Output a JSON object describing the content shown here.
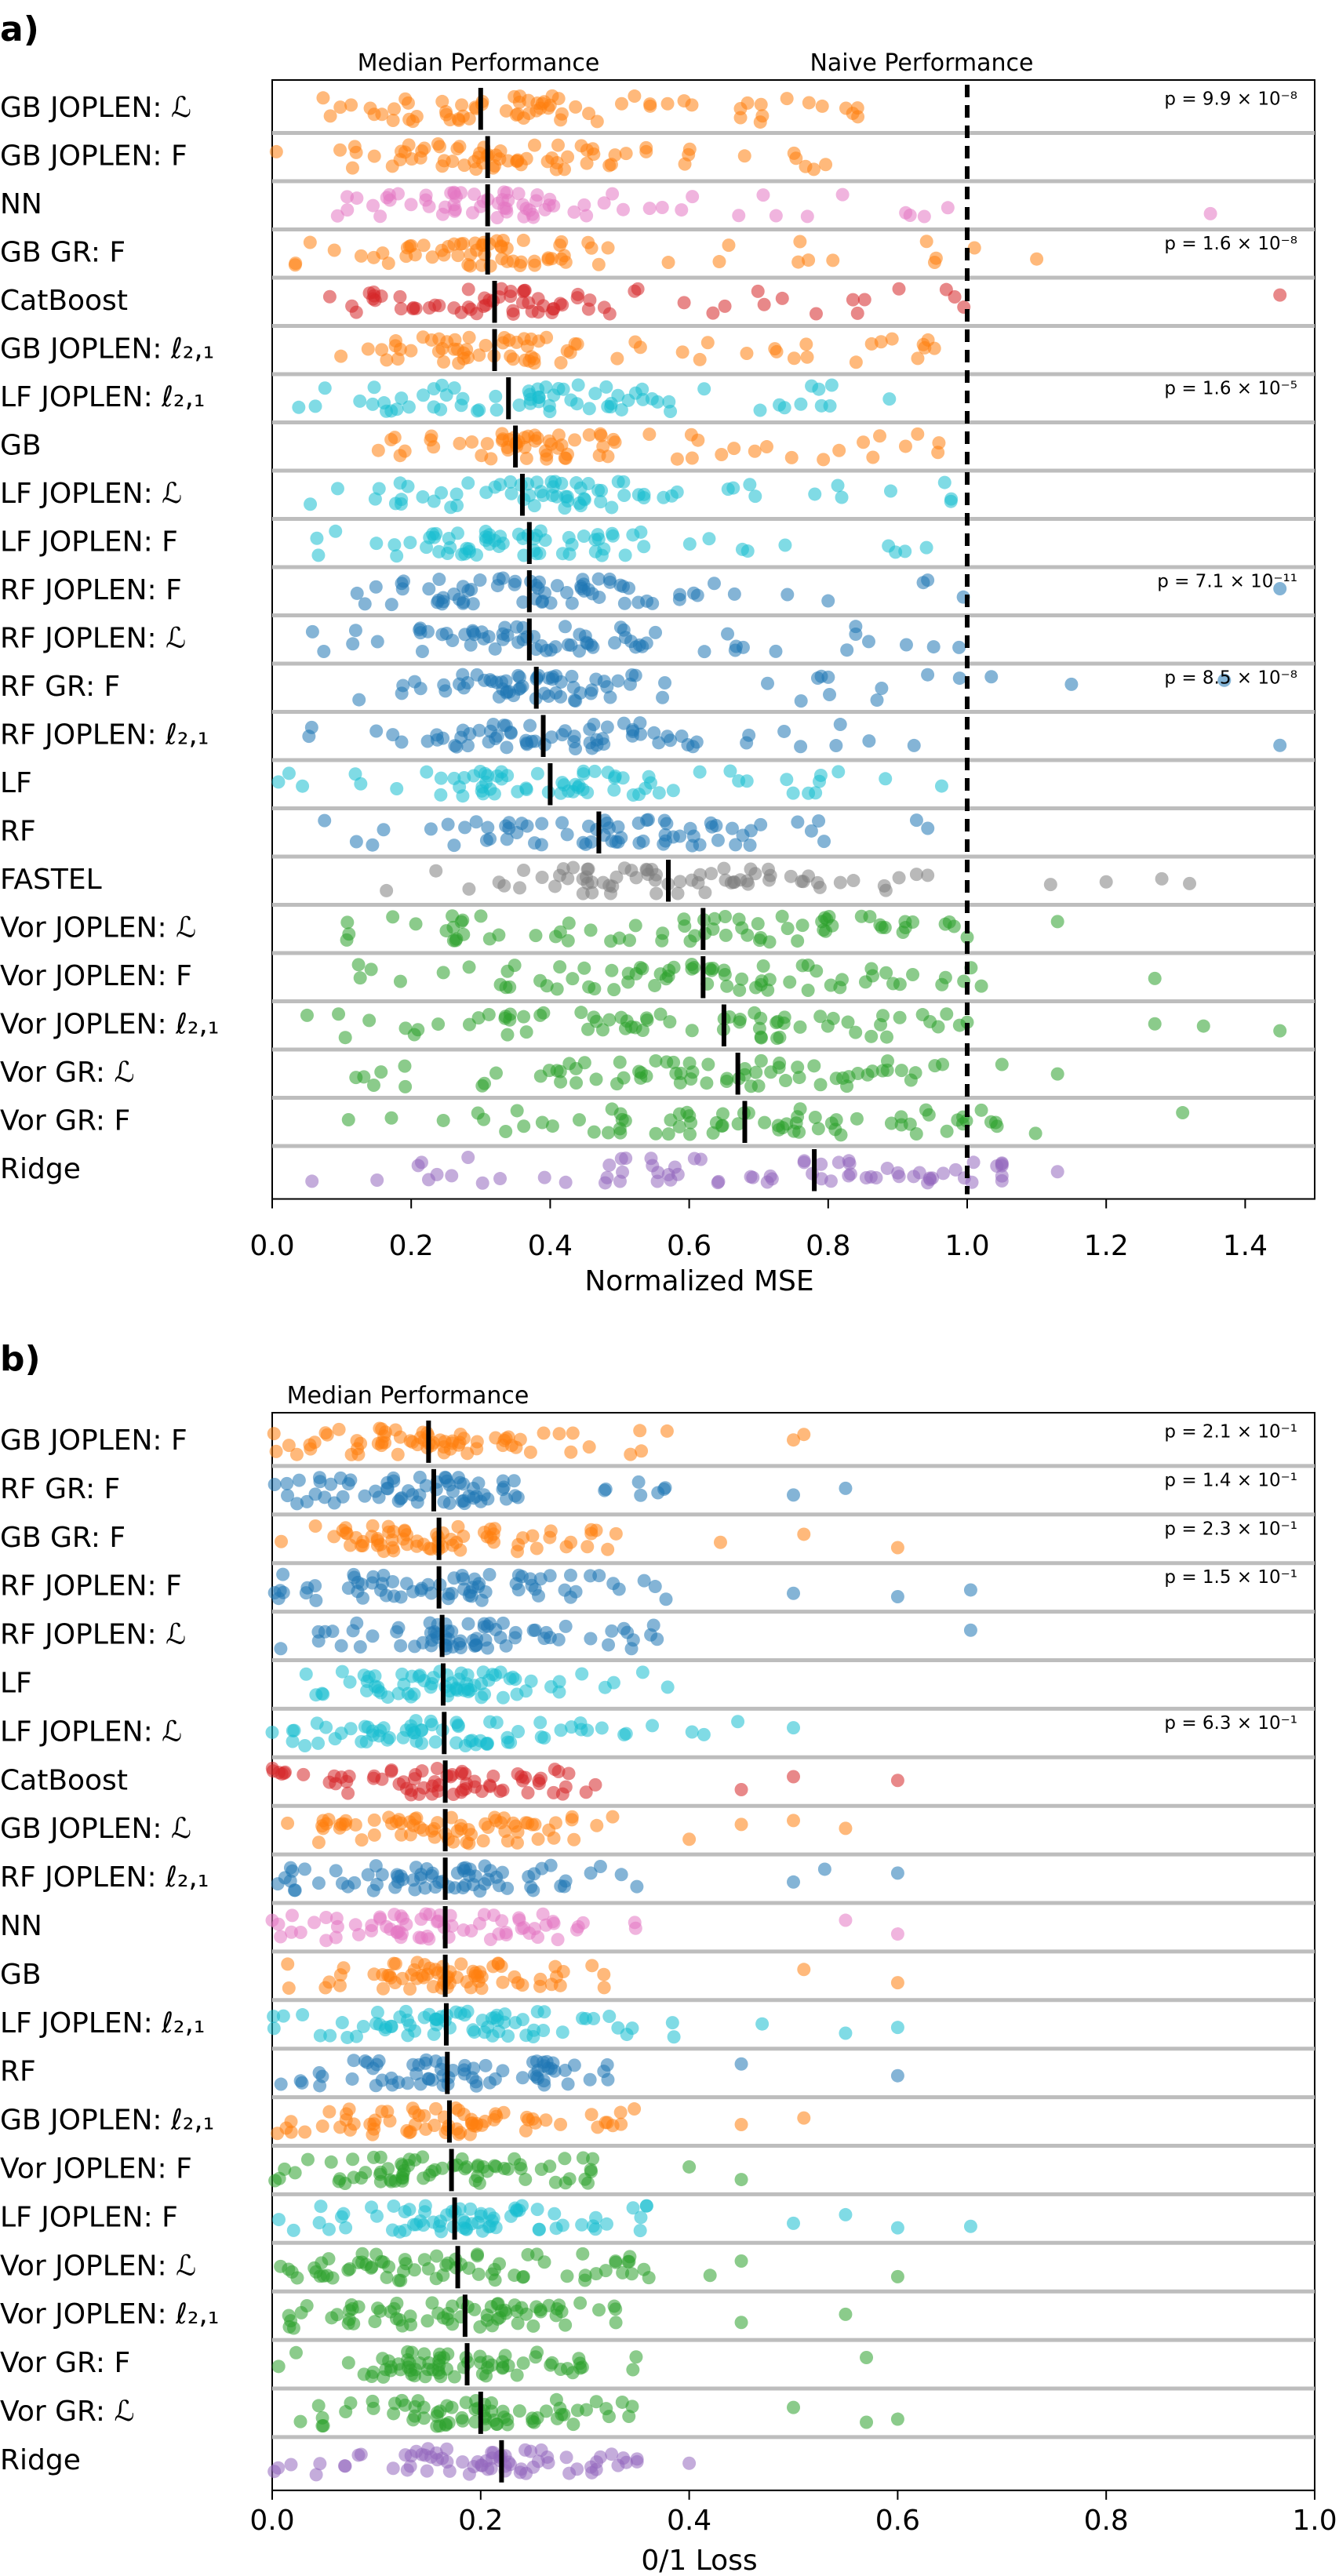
{
  "chart_data": [
    {
      "panel": "a)",
      "type": "scatter",
      "xlabel": "Normalized MSE",
      "xlim": [
        0.0,
        1.5
      ],
      "xticks": [
        "0.0",
        "0.2",
        "0.4",
        "0.6",
        "0.8",
        "1.0",
        "1.2",
        "1.4"
      ],
      "xtick_values": [
        0.0,
        0.2,
        0.4,
        0.6,
        0.8,
        1.0,
        1.2,
        1.4
      ],
      "grid": "horizontal row separators",
      "annotations": {
        "median": "Median Performance",
        "naive": "Naive Performance"
      },
      "naive_value": 1.0,
      "rows": [
        {
          "label": "GB JOPLEN: ℒ",
          "color": "#ff7f0e",
          "median": 0.3,
          "p": "p = 9.9 × 10⁻⁸",
          "spread": [
            0.0,
            0.85
          ],
          "outliers": []
        },
        {
          "label": "GB JOPLEN: F",
          "color": "#ff7f0e",
          "median": 0.31,
          "p": "",
          "spread": [
            0.0,
            0.85
          ],
          "outliers": []
        },
        {
          "label": "NN",
          "color": "#e377c2",
          "median": 0.31,
          "p": "",
          "spread": [
            0.05,
            1.0
          ],
          "outliers": [
            1.35
          ]
        },
        {
          "label": "GB GR: F",
          "color": "#ff7f0e",
          "median": 0.31,
          "p": "p = 1.6 × 10⁻⁸",
          "spread": [
            0.0,
            1.05
          ],
          "outliers": [
            1.1
          ]
        },
        {
          "label": "CatBoost",
          "color": "#d62728",
          "median": 0.32,
          "p": "",
          "spread": [
            0.08,
            1.0
          ],
          "outliers": [
            1.45
          ]
        },
        {
          "label": "GB JOPLEN: ℓ₂,₁",
          "color": "#ff7f0e",
          "median": 0.32,
          "p": "",
          "spread": [
            0.05,
            1.05
          ],
          "outliers": []
        },
        {
          "label": "LF JOPLEN: ℓ₂,₁",
          "color": "#17becf",
          "median": 0.34,
          "p": "p = 1.6 × 10⁻⁵",
          "spread": [
            0.03,
            1.02
          ],
          "outliers": []
        },
        {
          "label": "GB",
          "color": "#ff7f0e",
          "median": 0.35,
          "p": "",
          "spread": [
            0.05,
            1.0
          ],
          "outliers": []
        },
        {
          "label": "LF JOPLEN: ℒ",
          "color": "#17becf",
          "median": 0.36,
          "p": "",
          "spread": [
            0.03,
            1.02
          ],
          "outliers": []
        },
        {
          "label": "LF JOPLEN: F",
          "color": "#17becf",
          "median": 0.37,
          "p": "",
          "spread": [
            0.03,
            1.02
          ],
          "outliers": []
        },
        {
          "label": "RF JOPLEN: F",
          "color": "#1f77b4",
          "median": 0.37,
          "p": "p = 7.1 × 10⁻¹¹",
          "spread": [
            0.03,
            1.0
          ],
          "outliers": [
            1.45
          ]
        },
        {
          "label": "RF JOPLEN: ℒ",
          "color": "#1f77b4",
          "median": 0.37,
          "p": "",
          "spread": [
            0.05,
            1.0
          ],
          "outliers": []
        },
        {
          "label": "RF GR: F",
          "color": "#1f77b4",
          "median": 0.38,
          "p": "p = 8.5 × 10⁻⁸",
          "spread": [
            0.08,
            1.05
          ],
          "outliers": [
            1.15,
            1.37
          ]
        },
        {
          "label": "RF JOPLEN: ℓ₂,₁",
          "color": "#1f77b4",
          "median": 0.39,
          "p": "",
          "spread": [
            0.05,
            1.0
          ],
          "outliers": [
            1.45
          ]
        },
        {
          "label": "LF",
          "color": "#17becf",
          "median": 0.4,
          "p": "",
          "spread": [
            0.0,
            1.0
          ],
          "outliers": []
        },
        {
          "label": "RF",
          "color": "#1f77b4",
          "median": 0.47,
          "p": "",
          "spread": [
            0.05,
            1.0
          ],
          "outliers": []
        },
        {
          "label": "FASTEL",
          "color": "#7f7f7f",
          "median": 0.57,
          "p": "",
          "spread": [
            0.15,
            1.0
          ],
          "outliers": [
            1.12,
            1.2,
            1.28,
            1.32
          ]
        },
        {
          "label": "Vor JOPLEN: ℒ",
          "color": "#2ca02c",
          "median": 0.62,
          "p": "",
          "spread": [
            0.1,
            1.0
          ],
          "outliers": [
            1.13
          ]
        },
        {
          "label": "Vor JOPLEN: F",
          "color": "#2ca02c",
          "median": 0.62,
          "p": "",
          "spread": [
            0.1,
            1.05
          ],
          "outliers": [
            1.27
          ]
        },
        {
          "label": "Vor JOPLEN: ℓ₂,₁",
          "color": "#2ca02c",
          "median": 0.65,
          "p": "",
          "spread": [
            0.05,
            1.0
          ],
          "outliers": [
            1.27,
            1.34,
            1.45
          ]
        },
        {
          "label": "Vor GR: ℒ",
          "color": "#2ca02c",
          "median": 0.67,
          "p": "",
          "spread": [
            0.1,
            1.05
          ],
          "outliers": [
            1.13
          ]
        },
        {
          "label": "Vor GR: F",
          "color": "#2ca02c",
          "median": 0.68,
          "p": "",
          "spread": [
            0.1,
            1.1
          ],
          "outliers": [
            1.31
          ]
        },
        {
          "label": "Ridge",
          "color": "#9467bd",
          "median": 0.78,
          "p": "",
          "spread": [
            0.0,
            1.05
          ],
          "outliers": [
            1.13
          ]
        }
      ]
    },
    {
      "panel": "b)",
      "type": "scatter",
      "xlabel": "0/1 Loss",
      "xlim": [
        0.0,
        1.0
      ],
      "xticks": [
        "0.0",
        "0.2",
        "0.4",
        "0.6",
        "0.8",
        "1.0"
      ],
      "xtick_values": [
        0.0,
        0.2,
        0.4,
        0.6,
        0.8,
        1.0
      ],
      "grid": "horizontal row separators",
      "annotations": {
        "median": "Median Performance"
      },
      "rows": [
        {
          "label": "GB JOPLEN: F",
          "color": "#ff7f0e",
          "median": 0.15,
          "p": "p = 2.1 × 10⁻¹",
          "spread": [
            0.0,
            0.38
          ],
          "outliers": [
            0.5,
            0.51
          ]
        },
        {
          "label": "RF GR: F",
          "color": "#1f77b4",
          "median": 0.155,
          "p": "p = 1.4 × 10⁻¹",
          "spread": [
            0.0,
            0.38
          ],
          "outliers": [
            0.5,
            0.55
          ]
        },
        {
          "label": "GB GR: F",
          "color": "#ff7f0e",
          "median": 0.16,
          "p": "p = 2.3 × 10⁻¹",
          "spread": [
            0.0,
            0.34
          ],
          "outliers": [
            0.43,
            0.51,
            0.6
          ]
        },
        {
          "label": "RF JOPLEN: F",
          "color": "#1f77b4",
          "median": 0.16,
          "p": "p = 1.5 × 10⁻¹",
          "spread": [
            0.0,
            0.39
          ],
          "outliers": [
            0.5,
            0.6,
            0.67
          ]
        },
        {
          "label": "RF JOPLEN: ℒ",
          "color": "#1f77b4",
          "median": 0.163,
          "p": "",
          "spread": [
            0.0,
            0.4
          ],
          "outliers": [
            0.67
          ]
        },
        {
          "label": "LF",
          "color": "#17becf",
          "median": 0.164,
          "p": "",
          "spread": [
            0.0,
            0.4
          ],
          "outliers": []
        },
        {
          "label": "LF JOPLEN: ℒ",
          "color": "#17becf",
          "median": 0.165,
          "p": "p = 6.3 × 10⁻¹",
          "spread": [
            0.0,
            0.45
          ],
          "outliers": [
            0.5
          ]
        },
        {
          "label": "CatBoost",
          "color": "#d62728",
          "median": 0.166,
          "p": "",
          "spread": [
            0.0,
            0.31
          ],
          "outliers": [
            0.45,
            0.5,
            0.6
          ]
        },
        {
          "label": "GB JOPLEN: ℒ",
          "color": "#ff7f0e",
          "median": 0.166,
          "p": "",
          "spread": [
            0.0,
            0.33
          ],
          "outliers": [
            0.4,
            0.45,
            0.5,
            0.55
          ]
        },
        {
          "label": "RF JOPLEN: ℓ₂,₁",
          "color": "#1f77b4",
          "median": 0.166,
          "p": "",
          "spread": [
            0.0,
            0.36
          ],
          "outliers": [
            0.5,
            0.53,
            0.6
          ]
        },
        {
          "label": "NN",
          "color": "#e377c2",
          "median": 0.166,
          "p": "",
          "spread": [
            0.0,
            0.35
          ],
          "outliers": [
            0.55,
            0.6
          ]
        },
        {
          "label": "GB",
          "color": "#ff7f0e",
          "median": 0.166,
          "p": "",
          "spread": [
            0.0,
            0.34
          ],
          "outliers": [
            0.51,
            0.6
          ]
        },
        {
          "label": "LF JOPLEN: ℓ₂,₁",
          "color": "#17becf",
          "median": 0.167,
          "p": "",
          "spread": [
            0.0,
            0.39
          ],
          "outliers": [
            0.47,
            0.55,
            0.6
          ]
        },
        {
          "label": "RF",
          "color": "#1f77b4",
          "median": 0.168,
          "p": "",
          "spread": [
            0.0,
            0.35
          ],
          "outliers": [
            0.45,
            0.6
          ]
        },
        {
          "label": "GB JOPLEN: ℓ₂,₁",
          "color": "#ff7f0e",
          "median": 0.17,
          "p": "",
          "spread": [
            0.0,
            0.35
          ],
          "outliers": [
            0.45,
            0.51
          ]
        },
        {
          "label": "Vor JOPLEN: F",
          "color": "#2ca02c",
          "median": 0.172,
          "p": "",
          "spread": [
            0.0,
            0.33
          ],
          "outliers": [
            0.4,
            0.45
          ]
        },
        {
          "label": "LF JOPLEN: F",
          "color": "#17becf",
          "median": 0.175,
          "p": "",
          "spread": [
            0.0,
            0.37
          ],
          "outliers": [
            0.5,
            0.55,
            0.6,
            0.67
          ]
        },
        {
          "label": "Vor JOPLEN: ℒ",
          "color": "#2ca02c",
          "median": 0.178,
          "p": "",
          "spread": [
            0.0,
            0.38
          ],
          "outliers": [
            0.42,
            0.45,
            0.6
          ]
        },
        {
          "label": "Vor JOPLEN: ℓ₂,₁",
          "color": "#2ca02c",
          "median": 0.185,
          "p": "",
          "spread": [
            0.0,
            0.38
          ],
          "outliers": [
            0.45,
            0.55
          ]
        },
        {
          "label": "Vor GR: F",
          "color": "#2ca02c",
          "median": 0.187,
          "p": "",
          "spread": [
            0.0,
            0.36
          ],
          "outliers": [
            0.57
          ]
        },
        {
          "label": "Vor GR: ℒ",
          "color": "#2ca02c",
          "median": 0.2,
          "p": "",
          "spread": [
            0.0,
            0.38
          ],
          "outliers": [
            0.5,
            0.57,
            0.6
          ]
        },
        {
          "label": "Ridge",
          "color": "#9467bd",
          "median": 0.22,
          "p": "",
          "spread": [
            0.0,
            0.35
          ],
          "outliers": [
            0.4
          ]
        }
      ]
    }
  ]
}
